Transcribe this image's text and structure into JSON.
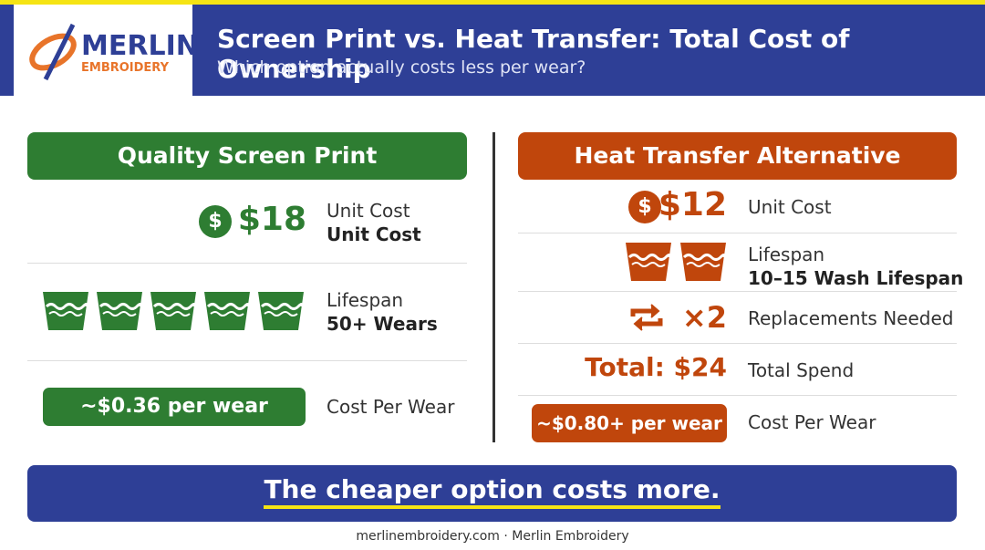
{
  "header": {
    "logo_line1": "MERLIN",
    "logo_line2": "EMBROIDERY",
    "title": "Screen Print vs. Heat Transfer: Total Cost of Ownership",
    "subtitle": "Which option actually costs less per wear?"
  },
  "left": {
    "heading": "Quality Screen Print",
    "rows": [
      {
        "icon": "$",
        "value": "$18",
        "label": "Unit Cost",
        "detail": "Unit Cost"
      },
      {
        "label": "Lifespan",
        "detail": "50+ Wears"
      },
      {
        "badge": "~$0.36 per wear",
        "label": "Cost Per Wear"
      }
    ]
  },
  "right": {
    "heading": "Heat Transfer Alternative",
    "rows": [
      {
        "icon": "$",
        "value": "$12",
        "label": "Unit Cost"
      },
      {
        "label": "Lifespan",
        "detail": "10–15 Wash Lifespan"
      },
      {
        "value": "×2",
        "label": "Replacements Needed"
      },
      {
        "value": "Total: $24",
        "label": "Total Spend"
      },
      {
        "badge": "~$0.80+ per wear",
        "label": "Cost Per Wear"
      }
    ]
  },
  "banner": "The cheaper option costs more.",
  "footer": "merlinembroidery.com · Merlin Embroidery"
}
